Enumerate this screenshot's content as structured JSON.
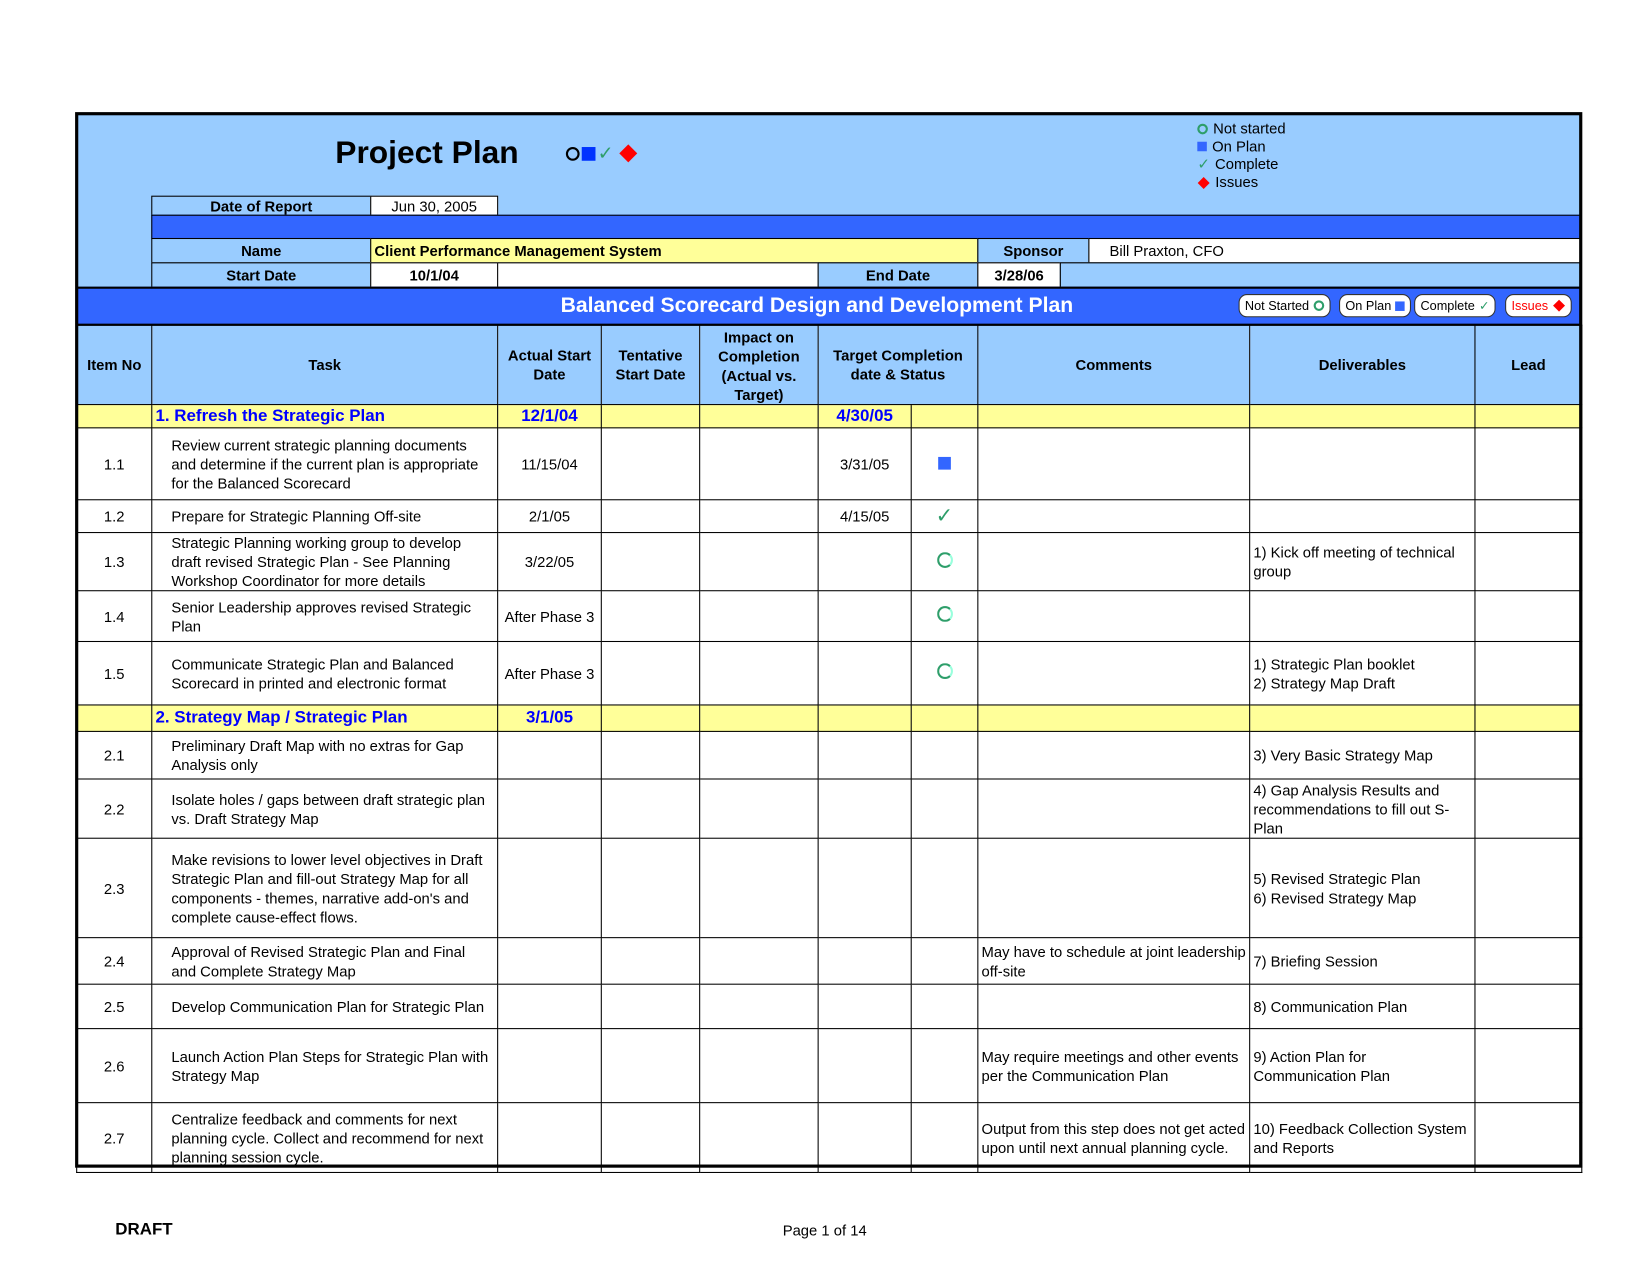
{
  "header": {
    "title": "Project Plan",
    "legend": [
      {
        "icon": "circle-outline-icon",
        "label": "Not started"
      },
      {
        "icon": "square-icon",
        "label": "On Plan"
      },
      {
        "icon": "check-icon",
        "label": "Complete"
      },
      {
        "icon": "diamond-icon",
        "label": "Issues"
      }
    ],
    "date_of_report_label": "Date of Report",
    "date_of_report": "Jun 30, 2005",
    "name_label": "Name",
    "name": "Client Performance Management System",
    "sponsor_label": "Sponsor",
    "sponsor": "Bill Praxton, CFO",
    "start_date_label": "Start Date",
    "start_date": "10/1/04",
    "end_date_label": "End Date",
    "end_date": "3/28/06"
  },
  "banner": {
    "title": "Balanced Scorecard Design and Development Plan",
    "badges": [
      "Not Started",
      "On Plan",
      "Complete",
      "Issues"
    ]
  },
  "columns": [
    "Item No",
    "Task",
    "Actual Start Date",
    "Tentative Start Date",
    "Impact on Completion (Actual vs. Target)",
    "Target Completion date & Status",
    "Comments",
    "Deliverables",
    "Lead"
  ],
  "rows": [
    {
      "section": true,
      "task": "1. Refresh the Strategic Plan",
      "actual": "12/1/04",
      "target": "4/30/05"
    },
    {
      "item": "1.1",
      "task": "Review current strategic planning documents and determine if the current plan is appropriate for the Balanced Scorecard",
      "actual": "11/15/04",
      "target": "3/31/05",
      "status": "on-plan",
      "comments": "",
      "deliverables": ""
    },
    {
      "item": "1.2",
      "task": "Prepare for Strategic Planning Off-site",
      "actual": "2/1/05",
      "target": "4/15/05",
      "status": "complete",
      "comments": "",
      "deliverables": ""
    },
    {
      "item": "1.3",
      "task": "Strategic Planning working group to develop draft revised Strategic Plan - See Planning Workshop Coordinator for more details",
      "actual": "3/22/05",
      "target": "",
      "status": "not-started",
      "comments": "",
      "deliverables": "1) Kick off meeting of technical group"
    },
    {
      "item": "1.4",
      "task": "Senior Leadership approves revised Strategic Plan",
      "actual": "After Phase 3",
      "target": "",
      "status": "not-started",
      "comments": "",
      "deliverables": ""
    },
    {
      "item": "1.5",
      "task": "Communicate Strategic Plan and Balanced Scorecard in printed and electronic format",
      "actual": "After Phase 3",
      "target": "",
      "status": "not-started",
      "comments": "",
      "deliverables": "1) Strategic Plan booklet\n2) Strategy Map Draft"
    },
    {
      "section": true,
      "task": "2. Strategy Map / Strategic Plan",
      "actual": "3/1/05",
      "target": ""
    },
    {
      "item": "2.1",
      "task": "Preliminary Draft Map with no extras for Gap Analysis only",
      "actual": "",
      "target": "",
      "status": "",
      "comments": "",
      "deliverables": "3) Very Basic Strategy Map"
    },
    {
      "item": "2.2",
      "task": "Isolate holes / gaps between draft strategic plan vs. Draft Strategy Map",
      "actual": "",
      "target": "",
      "status": "",
      "comments": "",
      "deliverables": "4) Gap Analysis Results and recommendations to fill out S-Plan"
    },
    {
      "item": "2.3",
      "task": "Make revisions to lower level objectives in Draft Strategic Plan and fill-out Strategy Map for all components - themes, narrative add-on's and complete cause-effect flows.",
      "actual": "",
      "target": "",
      "status": "",
      "comments": "",
      "deliverables": "5) Revised Strategic Plan\n6) Revised Strategy Map"
    },
    {
      "item": "2.4",
      "task": "Approval of Revised Strategic Plan and Final and Complete Strategy Map",
      "actual": "",
      "target": "",
      "status": "",
      "comments": "May have to schedule at joint leadership off-site",
      "deliverables": "7) Briefing Session"
    },
    {
      "item": "2.5",
      "task": "Develop Communication Plan for Strategic Plan",
      "actual": "",
      "target": "",
      "status": "",
      "comments": "",
      "deliverables": "8) Communication Plan"
    },
    {
      "item": "2.6",
      "task": "Launch Action Plan Steps for Strategic Plan with Strategy Map",
      "actual": "",
      "target": "",
      "status": "",
      "comments": "May require meetings and other events per the Communication Plan",
      "deliverables": "9) Action Plan for Communication Plan"
    },
    {
      "item": "2.7",
      "task": "Centralize feedback and comments for next planning cycle. Collect and recommend for next planning session cycle.",
      "actual": "",
      "target": "",
      "status": "",
      "comments": "Output from this step does not get acted upon until next annual planning cycle.",
      "deliverables": "10) Feedback Collection System and Reports"
    }
  ],
  "footer": {
    "draft": "DRAFT",
    "page": "Page 1 of 14"
  },
  "colors": {
    "light_blue": "#99CCFF",
    "blue": "#3366FF",
    "yellow": "#FFFF99",
    "section_text": "#0000FF",
    "status_green": "#2E9E6A",
    "issues_red": "#FF0000"
  }
}
